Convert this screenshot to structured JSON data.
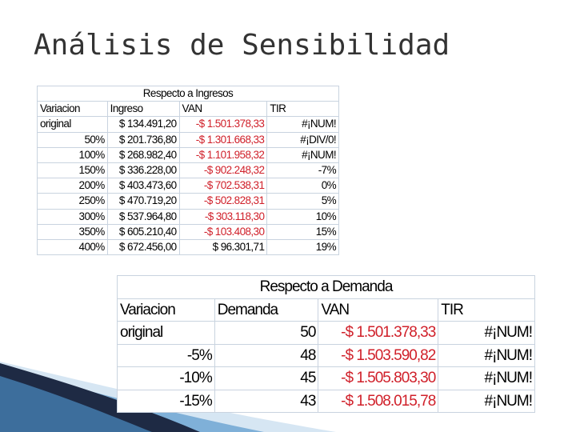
{
  "slide_title": "Análisis de Sensibilidad",
  "ingresos_table": {
    "caption": "Respecto a Ingresos",
    "headers": [
      "Variacion",
      "Ingreso",
      "VAN",
      "TIR"
    ],
    "rows": [
      {
        "variacion": "original",
        "ingreso": "$ 134.491,20",
        "van": "-$ 1.501.378,33",
        "tir": "#¡NUM!",
        "van_negative": true
      },
      {
        "variacion": "50%",
        "ingreso": "$ 201.736,80",
        "van": "-$ 1.301.668,33",
        "tir": "#¡DIV/0!",
        "van_negative": true
      },
      {
        "variacion": "100%",
        "ingreso": "$ 268.982,40",
        "van": "-$ 1.101.958,32",
        "tir": "#¡NUM!",
        "van_negative": true
      },
      {
        "variacion": "150%",
        "ingreso": "$ 336.228,00",
        "van": "-$ 902.248,32",
        "tir": "-7%",
        "van_negative": true
      },
      {
        "variacion": "200%",
        "ingreso": "$ 403.473,60",
        "van": "-$ 702.538,31",
        "tir": "0%",
        "van_negative": true
      },
      {
        "variacion": "250%",
        "ingreso": "$ 470.719,20",
        "van": "-$ 502.828,31",
        "tir": "5%",
        "van_negative": true
      },
      {
        "variacion": "300%",
        "ingreso": "$ 537.964,80",
        "van": "-$ 303.118,30",
        "tir": "10%",
        "van_negative": true
      },
      {
        "variacion": "350%",
        "ingreso": "$ 605.210,40",
        "van": "-$ 103.408,30",
        "tir": "15%",
        "van_negative": true
      },
      {
        "variacion": "400%",
        "ingreso": "$ 672.456,00",
        "van": "$ 96.301,71",
        "tir": "19%",
        "van_negative": false
      }
    ]
  },
  "demanda_table": {
    "caption": "Respecto a Demanda",
    "headers": [
      "Variacion",
      "Demanda",
      "VAN",
      "TIR"
    ],
    "rows": [
      {
        "variacion": "original",
        "demanda": "50",
        "van": "-$ 1.501.378,33",
        "tir": "#¡NUM!",
        "van_negative": true
      },
      {
        "variacion": "-5%",
        "demanda": "48",
        "van": "-$ 1.503.590,82",
        "tir": "#¡NUM!",
        "van_negative": true
      },
      {
        "variacion": "-10%",
        "demanda": "45",
        "van": "-$ 1.505.803,30",
        "tir": "#¡NUM!",
        "van_negative": true
      },
      {
        "variacion": "-15%",
        "demanda": "43",
        "van": "-$ 1.508.015,78",
        "tir": "#¡NUM!",
        "van_negative": true
      }
    ]
  },
  "colors": {
    "negative": "#d0202a",
    "grid": "#c9d3df",
    "title": "#333333",
    "accent_dark": "#1e2a44",
    "accent_light": "#7fb0d8"
  }
}
